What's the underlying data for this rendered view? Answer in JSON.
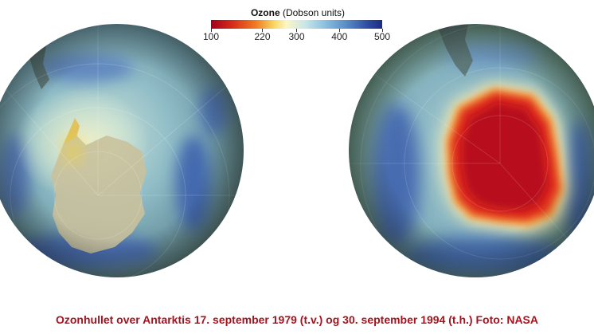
{
  "legend": {
    "title_bold": "Ozone",
    "title_unit": " (Dobson units)",
    "ticks": [
      "100",
      "220",
      "300",
      "400",
      "500"
    ],
    "tick_values": [
      100,
      220,
      300,
      400,
      500
    ],
    "range": [
      100,
      500
    ]
  },
  "caption": "Ozonhullet over Antarktis 17. september 1979 (t.v.) og 30. september 1994 (t.h.) Foto: NASA",
  "colors": {
    "caption": "#a8121c",
    "ozone_low": "#a3001c",
    "ozone_mid": "#fbf6c6",
    "ozone_high": "#1c2c80"
  }
}
